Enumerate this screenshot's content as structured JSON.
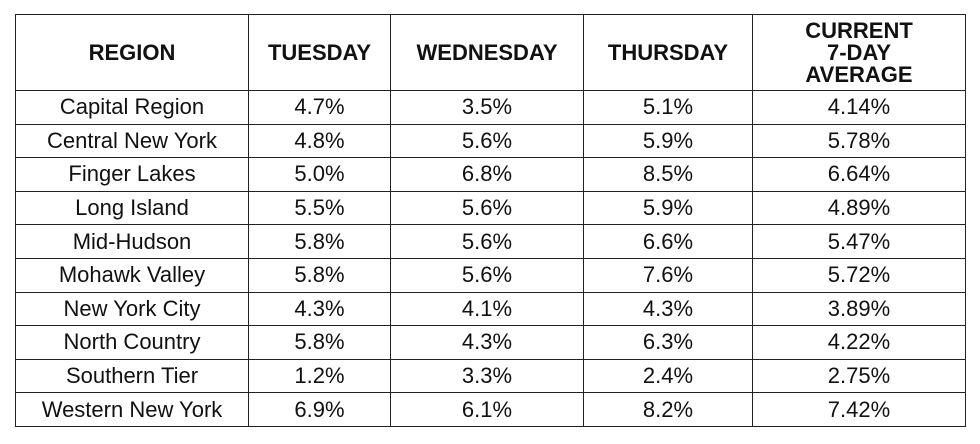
{
  "table": {
    "header": [
      "REGION",
      "TUESDAY",
      "WEDNESDAY",
      "THURSDAY",
      [
        "CURRENT",
        "7-DAY",
        "AVERAGE"
      ]
    ],
    "rows": [
      [
        "Capital Region",
        "4.7%",
        "3.5%",
        "5.1%",
        "4.14%"
      ],
      [
        "Central New York",
        "4.8%",
        "5.6%",
        "5.9%",
        "5.78%"
      ],
      [
        "Finger Lakes",
        "5.0%",
        "6.8%",
        "8.5%",
        "6.64%"
      ],
      [
        "Long Island",
        "5.5%",
        "5.6%",
        "5.9%",
        "4.89%"
      ],
      [
        "Mid-Hudson",
        "5.8%",
        "5.6%",
        "6.6%",
        "5.47%"
      ],
      [
        "Mohawk Valley",
        "5.8%",
        "5.6%",
        "7.6%",
        "5.72%"
      ],
      [
        "New York City",
        "4.3%",
        "4.1%",
        "4.3%",
        "3.89%"
      ],
      [
        "North Country",
        "5.8%",
        "4.3%",
        "6.3%",
        "4.22%"
      ],
      [
        "Southern Tier",
        "1.2%",
        "3.3%",
        "2.4%",
        "2.75%"
      ],
      [
        "Western New York",
        "6.9%",
        "6.1%",
        "8.2%",
        "7.42%"
      ]
    ]
  }
}
